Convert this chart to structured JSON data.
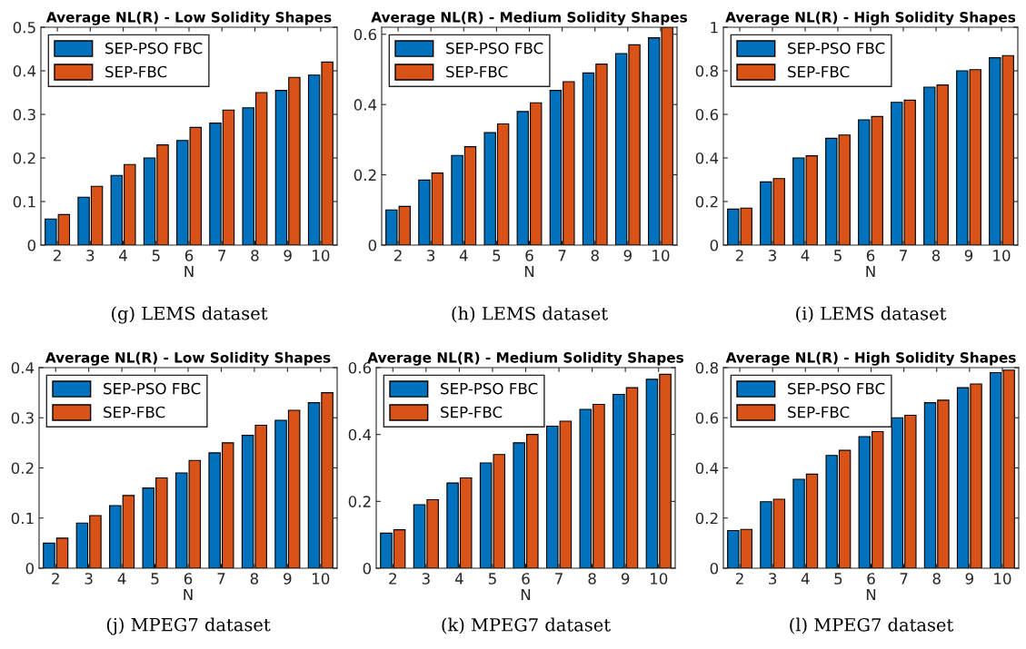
{
  "chart_data": [
    {
      "type": "bar",
      "title": "Average NL(R) - Low Solidity Shapes",
      "xlabel": "N",
      "categories": [
        "2",
        "3",
        "4",
        "5",
        "6",
        "7",
        "8",
        "9",
        "10"
      ],
      "ylim": [
        0,
        0.5
      ],
      "yticks": [
        0,
        0.1,
        0.2,
        0.3,
        0.4,
        0.5
      ],
      "legend": "top left",
      "grid": false,
      "annotations": [
        "(g) LEMS dataset"
      ],
      "series": [
        {
          "name": "SEP-PSO FBC",
          "color": "#0072bd",
          "values": [
            0.06,
            0.11,
            0.16,
            0.2,
            0.24,
            0.28,
            0.315,
            0.355,
            0.39
          ]
        },
        {
          "name": "SEP-FBC",
          "color": "#d95319",
          "values": [
            0.07,
            0.135,
            0.185,
            0.23,
            0.27,
            0.31,
            0.35,
            0.385,
            0.42
          ]
        }
      ]
    },
    {
      "type": "bar",
      "title": "Average NL(R) - Medium Solidity Shapes",
      "xlabel": "N",
      "categories": [
        "2",
        "3",
        "4",
        "5",
        "6",
        "7",
        "8",
        "9",
        "10"
      ],
      "ylim": [
        0,
        0.62
      ],
      "yticks": [
        0,
        0.2,
        0.4,
        0.6
      ],
      "legend": "top left",
      "grid": false,
      "annotations": [
        "(h) LEMS dataset"
      ],
      "series": [
        {
          "name": "SEP-PSO FBC",
          "color": "#0072bd",
          "values": [
            0.1,
            0.185,
            0.255,
            0.32,
            0.38,
            0.44,
            0.49,
            0.545,
            0.59
          ]
        },
        {
          "name": "SEP-FBC",
          "color": "#d95319",
          "values": [
            0.11,
            0.205,
            0.28,
            0.345,
            0.405,
            0.465,
            0.515,
            0.57,
            0.62
          ]
        }
      ]
    },
    {
      "type": "bar",
      "title": "Average NL(R) - High Solidity Shapes",
      "xlabel": "N",
      "categories": [
        "2",
        "3",
        "4",
        "5",
        "6",
        "7",
        "8",
        "9",
        "10"
      ],
      "ylim": [
        0,
        1
      ],
      "yticks": [
        0,
        0.2,
        0.4,
        0.6,
        0.8,
        1
      ],
      "legend": "top left",
      "grid": false,
      "annotations": [
        "(i) LEMS dataset"
      ],
      "series": [
        {
          "name": "SEP-PSO FBC",
          "color": "#0072bd",
          "values": [
            0.165,
            0.29,
            0.4,
            0.49,
            0.575,
            0.655,
            0.725,
            0.8,
            0.86
          ]
        },
        {
          "name": "SEP-FBC",
          "color": "#d95319",
          "values": [
            0.17,
            0.305,
            0.41,
            0.505,
            0.59,
            0.665,
            0.735,
            0.805,
            0.87
          ]
        }
      ]
    },
    {
      "type": "bar",
      "title": "Average NL(R) - Low Solidity Shapes",
      "xlabel": "N",
      "categories": [
        "2",
        "3",
        "4",
        "5",
        "6",
        "7",
        "8",
        "9",
        "10"
      ],
      "ylim": [
        0,
        0.4
      ],
      "yticks": [
        0,
        0.1,
        0.2,
        0.3,
        0.4
      ],
      "legend": "top left",
      "grid": false,
      "annotations": [
        "(j) MPEG7 dataset"
      ],
      "series": [
        {
          "name": "SEP-PSO FBC",
          "color": "#0072bd",
          "values": [
            0.05,
            0.09,
            0.125,
            0.16,
            0.19,
            0.23,
            0.265,
            0.295,
            0.33
          ]
        },
        {
          "name": "SEP-FBC",
          "color": "#d95319",
          "values": [
            0.06,
            0.105,
            0.145,
            0.18,
            0.215,
            0.25,
            0.285,
            0.315,
            0.35
          ]
        }
      ]
    },
    {
      "type": "bar",
      "title": "Average NL(R) - Medium Solidity Shapes",
      "xlabel": "N",
      "categories": [
        "2",
        "3",
        "4",
        "5",
        "6",
        "7",
        "8",
        "9",
        "10"
      ],
      "ylim": [
        0,
        0.6
      ],
      "yticks": [
        0,
        0.2,
        0.4,
        0.6
      ],
      "legend": "top left",
      "grid": false,
      "annotations": [
        "(k) MPEG7 dataset"
      ],
      "series": [
        {
          "name": "SEP-PSO FBC",
          "color": "#0072bd",
          "values": [
            0.105,
            0.19,
            0.255,
            0.315,
            0.375,
            0.425,
            0.475,
            0.52,
            0.565
          ]
        },
        {
          "name": "SEP-FBC",
          "color": "#d95319",
          "values": [
            0.115,
            0.205,
            0.27,
            0.34,
            0.4,
            0.44,
            0.49,
            0.54,
            0.58
          ]
        }
      ]
    },
    {
      "type": "bar",
      "title": "Average NL(R) - High Solidity Shapes",
      "xlabel": "N",
      "categories": [
        "2",
        "3",
        "4",
        "5",
        "6",
        "7",
        "8",
        "9",
        "10"
      ],
      "ylim": [
        0,
        0.8
      ],
      "yticks": [
        0,
        0.2,
        0.4,
        0.6,
        0.8
      ],
      "legend": "top left",
      "grid": false,
      "annotations": [
        "(l) MPEG7 dataset"
      ],
      "series": [
        {
          "name": "SEP-PSO FBC",
          "color": "#0072bd",
          "values": [
            0.15,
            0.265,
            0.355,
            0.45,
            0.525,
            0.6,
            0.66,
            0.72,
            0.78
          ]
        },
        {
          "name": "SEP-FBC",
          "color": "#d95319",
          "values": [
            0.155,
            0.275,
            0.375,
            0.47,
            0.545,
            0.61,
            0.67,
            0.735,
            0.79
          ]
        }
      ]
    }
  ]
}
